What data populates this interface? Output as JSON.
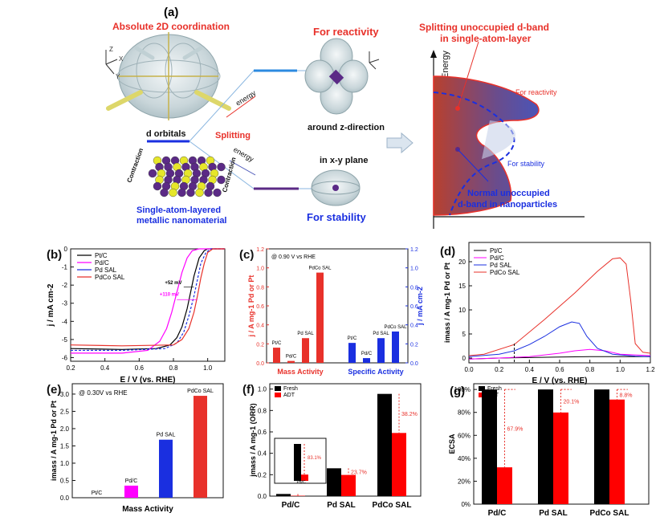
{
  "panel_labels": {
    "a": "(a)",
    "b": "(b)",
    "c": "(c)",
    "d": "(d)",
    "e": "(e)",
    "f": "(f)",
    "g": "(g)"
  },
  "schematic": {
    "coordination_title": "Absolute 2D coordination",
    "reactivity_title": "For reactivity",
    "stability_title": "For stability",
    "d_orbitals": "d orbitals",
    "splitting": "Splitting",
    "energy_up": "energy",
    "energy_down": "energy",
    "around_z": "around z-direction",
    "in_xy": "in x-y plane",
    "contraction_left": "Contraction",
    "contraction_right": "Contraction",
    "nanomaterial_line1": "Single-atom-layered",
    "nanomaterial_line2": "metallic nanomaterial",
    "axis_z": "Z",
    "axis_x": "X",
    "axis_y": "Y",
    "energy_axis": "Energy",
    "band_title_line1": "Splitting unoccupied  d-band",
    "band_title_line2": "in single-atom-layer",
    "band_for_reactivity": "For reactivity",
    "band_for_stability": "For stability",
    "band_normal_line1": "Normal unoccupied",
    "band_normal_line2": "d-band in nanoparticles",
    "colors": {
      "red": "#e8312a",
      "blue": "#2c3ed8",
      "purple": "#5b2a86",
      "yellow": "#e6e62a"
    }
  },
  "chart_data": [
    {
      "id": "b",
      "type": "line",
      "xlabel": "E / V (vs. RHE)",
      "ylabel": "j / mA cm-2",
      "xlim": [
        0.2,
        1.1
      ],
      "ylim": [
        -6.2,
        0
      ],
      "xticks": [
        "0.2",
        "0.4",
        "0.6",
        "0.8",
        "1.0"
      ],
      "yticks": [
        "-6",
        "-5",
        "-4",
        "-3",
        "-2",
        "-1",
        "0"
      ],
      "annotations": [
        "+52 mV",
        "+110 mV"
      ],
      "series": [
        {
          "name": "Pt/C",
          "color": "#000000",
          "x": [
            0.2,
            0.5,
            0.7,
            0.78,
            0.82,
            0.85,
            0.88,
            0.9,
            0.92,
            0.95,
            0.98,
            1.0,
            1.05,
            1.1
          ],
          "y": [
            -5.5,
            -5.55,
            -5.5,
            -5.3,
            -4.9,
            -4.3,
            -3.3,
            -2.4,
            -1.5,
            -0.5,
            -0.1,
            0,
            0,
            0
          ]
        },
        {
          "name": "Pd/C",
          "color": "#ff00ff",
          "x": [
            0.2,
            0.5,
            0.65,
            0.72,
            0.76,
            0.79,
            0.82,
            0.85,
            0.88,
            0.91,
            0.95,
            1.0,
            1.1
          ],
          "y": [
            -5.75,
            -5.75,
            -5.6,
            -5.1,
            -4.4,
            -3.5,
            -2.4,
            -1.3,
            -0.5,
            -0.1,
            0,
            0,
            0
          ]
        },
        {
          "name": "Pd SAL",
          "color": "#1a2fe0",
          "x": [
            0.2,
            0.5,
            0.75,
            0.82,
            0.86,
            0.89,
            0.92,
            0.94,
            0.96,
            0.99,
            1.02,
            1.1
          ],
          "y": [
            -5.6,
            -5.6,
            -5.5,
            -5.2,
            -4.6,
            -3.7,
            -2.6,
            -1.7,
            -0.8,
            -0.2,
            0,
            0
          ],
          "dash": "3,2"
        },
        {
          "name": "PdCo SAL",
          "color": "#e8312a",
          "x": [
            0.2,
            0.5,
            0.8,
            0.85,
            0.89,
            0.92,
            0.94,
            0.96,
            0.98,
            1.0,
            1.03,
            1.1
          ],
          "y": [
            -5.3,
            -5.35,
            -5.3,
            -5.0,
            -4.4,
            -3.5,
            -2.6,
            -1.6,
            -0.8,
            -0.2,
            0,
            0
          ]
        }
      ]
    },
    {
      "id": "c",
      "type": "bar",
      "annotation": "@ 0.90 V vs RHE",
      "ylabel_left": "j / A mg-1 Pd or Pt",
      "ylabel_right": "j / mA cm-2",
      "ylim_left": [
        0,
        1.2
      ],
      "ylim_right": [
        0,
        1.2
      ],
      "ticks": [
        "0.0",
        "0.2",
        "0.4",
        "0.6",
        "0.8",
        "1.0",
        "1.2"
      ],
      "groups": [
        {
          "name": "Mass Activity",
          "color": "#e8312a",
          "labels": [
            "Pt/C",
            "Pd/C",
            "Pd SAL",
            "PdCo SAL"
          ],
          "values": [
            0.16,
            0.02,
            0.26,
            0.95
          ]
        },
        {
          "name": "Specific Activity",
          "color": "#1a2fe0",
          "labels": [
            "Pt/C",
            "Pd/C",
            "Pd SAL",
            "PdCo SAL"
          ],
          "values": [
            0.21,
            0.05,
            0.26,
            0.33
          ]
        }
      ]
    },
    {
      "id": "d",
      "type": "line",
      "xlabel": "E / V (vs. RHE)",
      "ylabel": "imass / A mg-1 Pd or Pt",
      "xlim": [
        0.0,
        1.2
      ],
      "ylim": [
        -1,
        24
      ],
      "xticks": [
        "0.0",
        "0.2",
        "0.4",
        "0.6",
        "0.8",
        "1.0",
        "1.2"
      ],
      "yticks": [
        "0",
        "5",
        "10",
        "15",
        "20"
      ],
      "series": [
        {
          "name": "Pt/C",
          "color": "#000000",
          "x": [
            0,
            0.2,
            0.4,
            0.6,
            0.8,
            1.0,
            1.2
          ],
          "y": [
            -0.2,
            0,
            0.1,
            0.2,
            0.3,
            0.3,
            0.3
          ]
        },
        {
          "name": "Pd/C",
          "color": "#ff00ff",
          "x": [
            0,
            0.2,
            0.4,
            0.6,
            0.7,
            0.8,
            0.9,
            1.0,
            1.2
          ],
          "y": [
            -0.2,
            0,
            0.3,
            1.0,
            1.5,
            1.8,
            1.5,
            0.8,
            0.5
          ]
        },
        {
          "name": "Pd SAL",
          "color": "#1a2fe0",
          "x": [
            0,
            0.2,
            0.3,
            0.4,
            0.5,
            0.6,
            0.68,
            0.73,
            0.78,
            0.85,
            0.95,
            1.1,
            1.2
          ],
          "y": [
            0.3,
            0.8,
            1.5,
            2.8,
            4.5,
            6.5,
            7.5,
            7.2,
            4.5,
            2.0,
            0.8,
            0.4,
            0.3
          ]
        },
        {
          "name": "PdCo SAL",
          "color": "#e8312a",
          "x": [
            0,
            0.1,
            0.3,
            0.5,
            0.7,
            0.85,
            0.95,
            1.0,
            1.04,
            1.07,
            1.1,
            1.15,
            1.2
          ],
          "y": [
            0.5,
            0.8,
            2.8,
            8.0,
            13.5,
            18.0,
            20.6,
            20.8,
            19.5,
            12.0,
            3.0,
            1.2,
            1.0
          ]
        }
      ]
    },
    {
      "id": "e",
      "type": "bar",
      "annotation": "@ 0.30V vs RHE",
      "xlabel": "Mass Activity",
      "ylabel": "imass / A mg-1 Pd or Pt",
      "ylim": [
        0,
        3.3
      ],
      "yticks": [
        "0.0",
        "0.5",
        "1.0",
        "1.5",
        "2.0",
        "2.5",
        "3.0"
      ],
      "categories": [
        "Pt/C",
        "Pd/C",
        "Pd SAL",
        "PdCo SAL"
      ],
      "values": [
        0.0,
        0.35,
        1.68,
        2.95
      ],
      "colors": [
        "#000000",
        "#ff00ff",
        "#1a2fe0",
        "#e8312a"
      ]
    },
    {
      "id": "f",
      "type": "bar",
      "ylabel": "jmass / A mg-1 (ORR)",
      "ylim": [
        0,
        1.05
      ],
      "yticks": [
        "0.0",
        "0.2",
        "0.4",
        "0.6",
        "0.8",
        "1.0"
      ],
      "categories": [
        "Pd/C",
        "Pd SAL",
        "PdCo SAL"
      ],
      "series": [
        {
          "name": "Fresh",
          "color": "#000000",
          "values": [
            0.02,
            0.26,
            0.955
          ]
        },
        {
          "name": "ADT",
          "color": "#ff0000",
          "values": [
            0.0034,
            0.198,
            0.59
          ]
        }
      ],
      "loss_labels": [
        "83.1%",
        "23.7%",
        "38.2%"
      ],
      "inset_label": "Pd/C"
    },
    {
      "id": "g",
      "type": "bar",
      "ylabel": "ECSA",
      "ylim": [
        0,
        105
      ],
      "yticks": [
        "0%",
        "20%",
        "40%",
        "60%",
        "80%",
        "100%"
      ],
      "categories": [
        "Pd/C",
        "Pd SAL",
        "PdCo SAL"
      ],
      "series": [
        {
          "name": "Fresh",
          "color": "#000000",
          "values": [
            100,
            100,
            100
          ]
        },
        {
          "name": "ADT",
          "color": "#ff0000",
          "values": [
            32.1,
            79.9,
            91.2
          ]
        }
      ],
      "loss_labels": [
        "67.9%",
        "20.1%",
        "8.8%"
      ]
    }
  ]
}
